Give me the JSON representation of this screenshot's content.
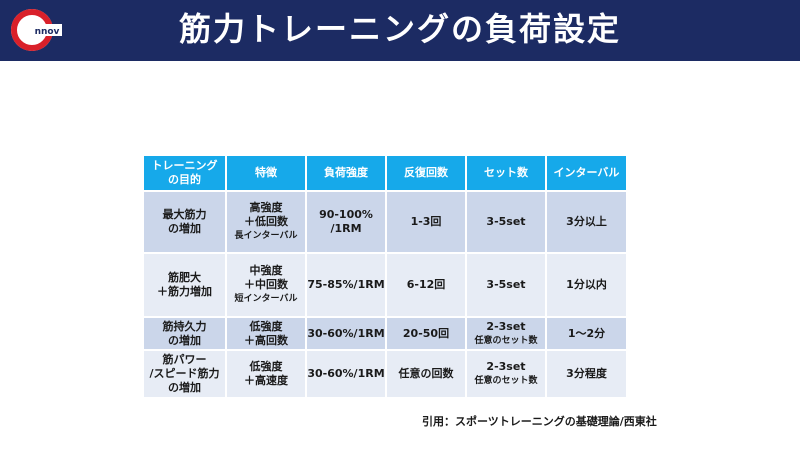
{
  "header": {
    "title": "筋力トレーニングの負荷設定",
    "logo_letter": "C",
    "logo_text": "nnov",
    "colors": {
      "background": "#1c2b63",
      "logo_red": "#d9202a"
    }
  },
  "table": {
    "header_color": "#16a9ea",
    "columns": [
      {
        "line1": "トレーニング",
        "line2": "の目的"
      },
      {
        "line1": "特徴",
        "line2": ""
      },
      {
        "line1": "負荷強度",
        "line2": ""
      },
      {
        "line1": "反復回数",
        "line2": ""
      },
      {
        "line1": "セット数",
        "line2": ""
      },
      {
        "line1": "インターバル",
        "line2": ""
      }
    ],
    "rows": [
      {
        "purpose": [
          "最大筋力",
          "の増加"
        ],
        "features": [
          "高強度",
          "＋低回数"
        ],
        "features_note": "長インターバル",
        "intensity": [
          "90-100%",
          "/1RM"
        ],
        "reps": "1-3回",
        "sets": "3-5set",
        "sets_note": "",
        "interval": "3分以上"
      },
      {
        "purpose": [
          "筋肥大",
          "＋筋力増加"
        ],
        "features": [
          "中強度",
          "＋中回数"
        ],
        "features_note": "短インターバル",
        "intensity": [
          "75-85%/1RM",
          ""
        ],
        "reps": "6-12回",
        "sets": "3-5set",
        "sets_note": "",
        "interval": "1分以内"
      },
      {
        "purpose": [
          "筋持久力",
          "の増加"
        ],
        "features": [
          "低強度",
          "＋高回数"
        ],
        "features_note": "",
        "intensity": [
          "30-60%/1RM",
          ""
        ],
        "reps": "20-50回",
        "sets": "2-3set",
        "sets_note": "任意のセット数",
        "interval": "1～2分"
      },
      {
        "purpose": [
          "筋パワー",
          "/スピード筋力",
          "の増加"
        ],
        "features": [
          "低強度",
          "＋高速度"
        ],
        "features_note": "",
        "intensity": [
          "30-60%/1RM",
          ""
        ],
        "reps": "任意の回数",
        "sets": "2-3set",
        "sets_note": "任意のセット数",
        "interval": "3分程度"
      }
    ]
  },
  "citation": "引用：スポーツトレーニングの基礎理論/西東社"
}
